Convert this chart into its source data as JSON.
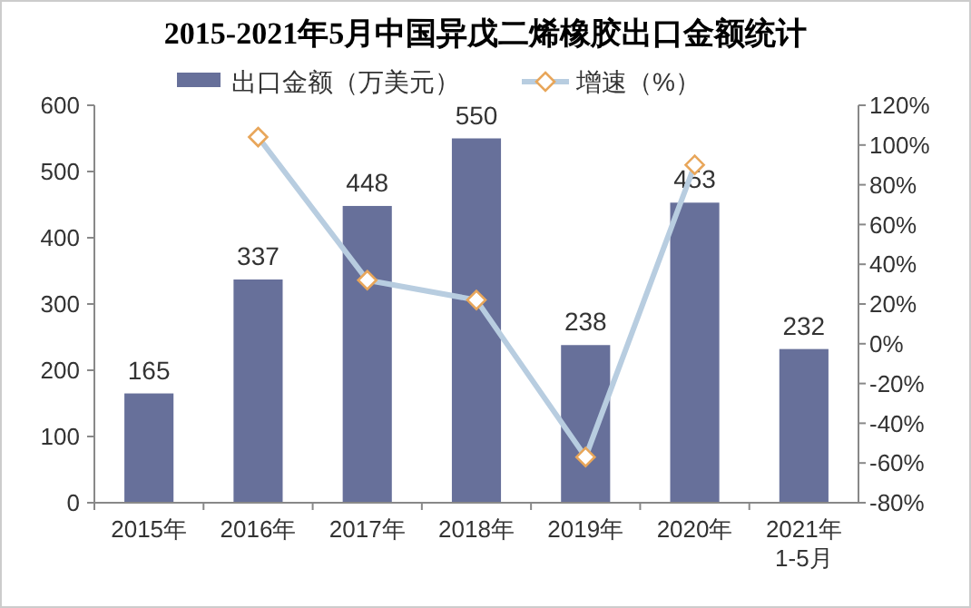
{
  "chart_data": {
    "type": "bar",
    "title": "2015-2021年5月中国异戊二烯橡胶出口金额统计",
    "categories": [
      "2015年",
      "2016年",
      "2017年",
      "2018年",
      "2019年",
      "2020年",
      "2021年\n1-5月"
    ],
    "series": [
      {
        "name": "出口金额（万美元）",
        "color": "#67709a",
        "values": [
          165,
          337,
          448,
          550,
          238,
          453,
          232
        ],
        "value_labels": [
          "165",
          "337",
          "448",
          "550",
          "238",
          "453",
          "232"
        ]
      },
      {
        "name": "增速（%）",
        "type": "line",
        "axis": "y2",
        "color": "#b8cde0",
        "marker": "diamond",
        "values": [
          null,
          104,
          32,
          22,
          -57,
          90,
          null
        ]
      }
    ],
    "ylim": [
      0,
      600
    ],
    "yticks": [
      0,
      100,
      200,
      300,
      400,
      500,
      600
    ],
    "y2lim": [
      -80,
      120
    ],
    "y2ticks": [
      {
        "value": -80,
        "label": "-80%"
      },
      {
        "value": -60,
        "label": "-60%"
      },
      {
        "value": -40,
        "label": "-40%"
      },
      {
        "value": -20,
        "label": "-20%"
      },
      {
        "value": 0,
        "label": "0%"
      },
      {
        "value": 20,
        "label": "20%"
      },
      {
        "value": 40,
        "label": "40%"
      },
      {
        "value": 60,
        "label": "60%"
      },
      {
        "value": 80,
        "label": "80%"
      },
      {
        "value": 100,
        "label": "100%"
      },
      {
        "value": 120,
        "label": "120%"
      }
    ],
    "legend": "top",
    "grid": false
  }
}
